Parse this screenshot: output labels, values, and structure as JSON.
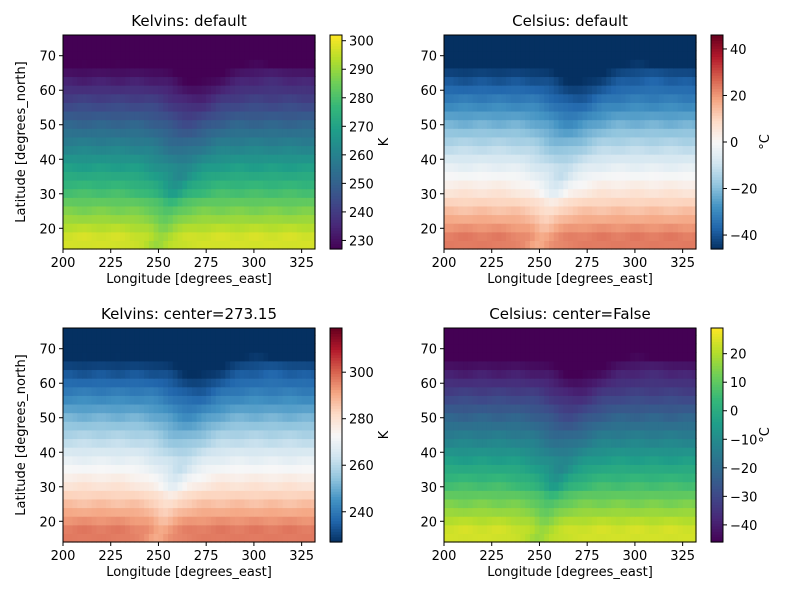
{
  "chart_data": [
    {
      "type": "heatmap",
      "title": "Kelvins: default",
      "xlabel": "Longitude [degrees_east]",
      "ylabel": "Latitude [degrees_north]",
      "colorbar_label": "K",
      "colormap": "viridis",
      "xlim": [
        200,
        332
      ],
      "ylim": [
        14,
        76
      ],
      "xticks": [
        200,
        225,
        250,
        275,
        300,
        325
      ],
      "yticks": [
        20,
        30,
        40,
        50,
        60,
        70
      ],
      "vmin": 227,
      "vmax": 302,
      "cticks": [
        230,
        240,
        250,
        260,
        270,
        280,
        290,
        300
      ],
      "offset": 273.15,
      "show_ylabel": true,
      "cbar_label_offset": 58
    },
    {
      "type": "heatmap",
      "title": "Celsius: default",
      "xlabel": "Longitude [degrees_east]",
      "ylabel": "",
      "colorbar_label": "°C",
      "colormap": "RdBu_r",
      "xlim": [
        200,
        332
      ],
      "ylim": [
        14,
        76
      ],
      "xticks": [
        200,
        225,
        250,
        275,
        300,
        325
      ],
      "yticks": [
        20,
        30,
        40,
        50,
        60,
        70
      ],
      "vmin": -46,
      "vmax": 46,
      "cticks": [
        -40,
        -20,
        0,
        20,
        40
      ],
      "offset": 0,
      "show_ylabel": false,
      "cbar_label_offset": 58
    },
    {
      "type": "heatmap",
      "title": "Kelvins: center=273.15",
      "xlabel": "Longitude [degrees_east]",
      "ylabel": "Latitude [degrees_north]",
      "colorbar_label": "K",
      "colormap": "RdBu_r",
      "xlim": [
        200,
        332
      ],
      "ylim": [
        14,
        76
      ],
      "xticks": [
        200,
        225,
        250,
        275,
        300,
        325
      ],
      "yticks": [
        20,
        30,
        40,
        50,
        60,
        70
      ],
      "vmin": 227,
      "vmax": 319,
      "cticks": [
        240,
        260,
        280,
        300
      ],
      "offset": 273.15,
      "show_ylabel": true,
      "cbar_label_offset": 58
    },
    {
      "type": "heatmap",
      "title": "Celsius: center=False",
      "xlabel": "Longitude [degrees_east]",
      "ylabel": "",
      "colorbar_label": "°C",
      "colormap": "viridis",
      "xlim": [
        200,
        332
      ],
      "ylim": [
        14,
        76
      ],
      "xticks": [
        200,
        225,
        250,
        275,
        300,
        325
      ],
      "yticks": [
        20,
        30,
        40,
        50,
        60,
        70
      ],
      "vmin": -46,
      "vmax": 29,
      "cticks": [
        -40,
        -30,
        -20,
        -10,
        0,
        10,
        20
      ],
      "offset": 0,
      "show_ylabel": false,
      "cbar_label_offset": 58
    }
  ]
}
